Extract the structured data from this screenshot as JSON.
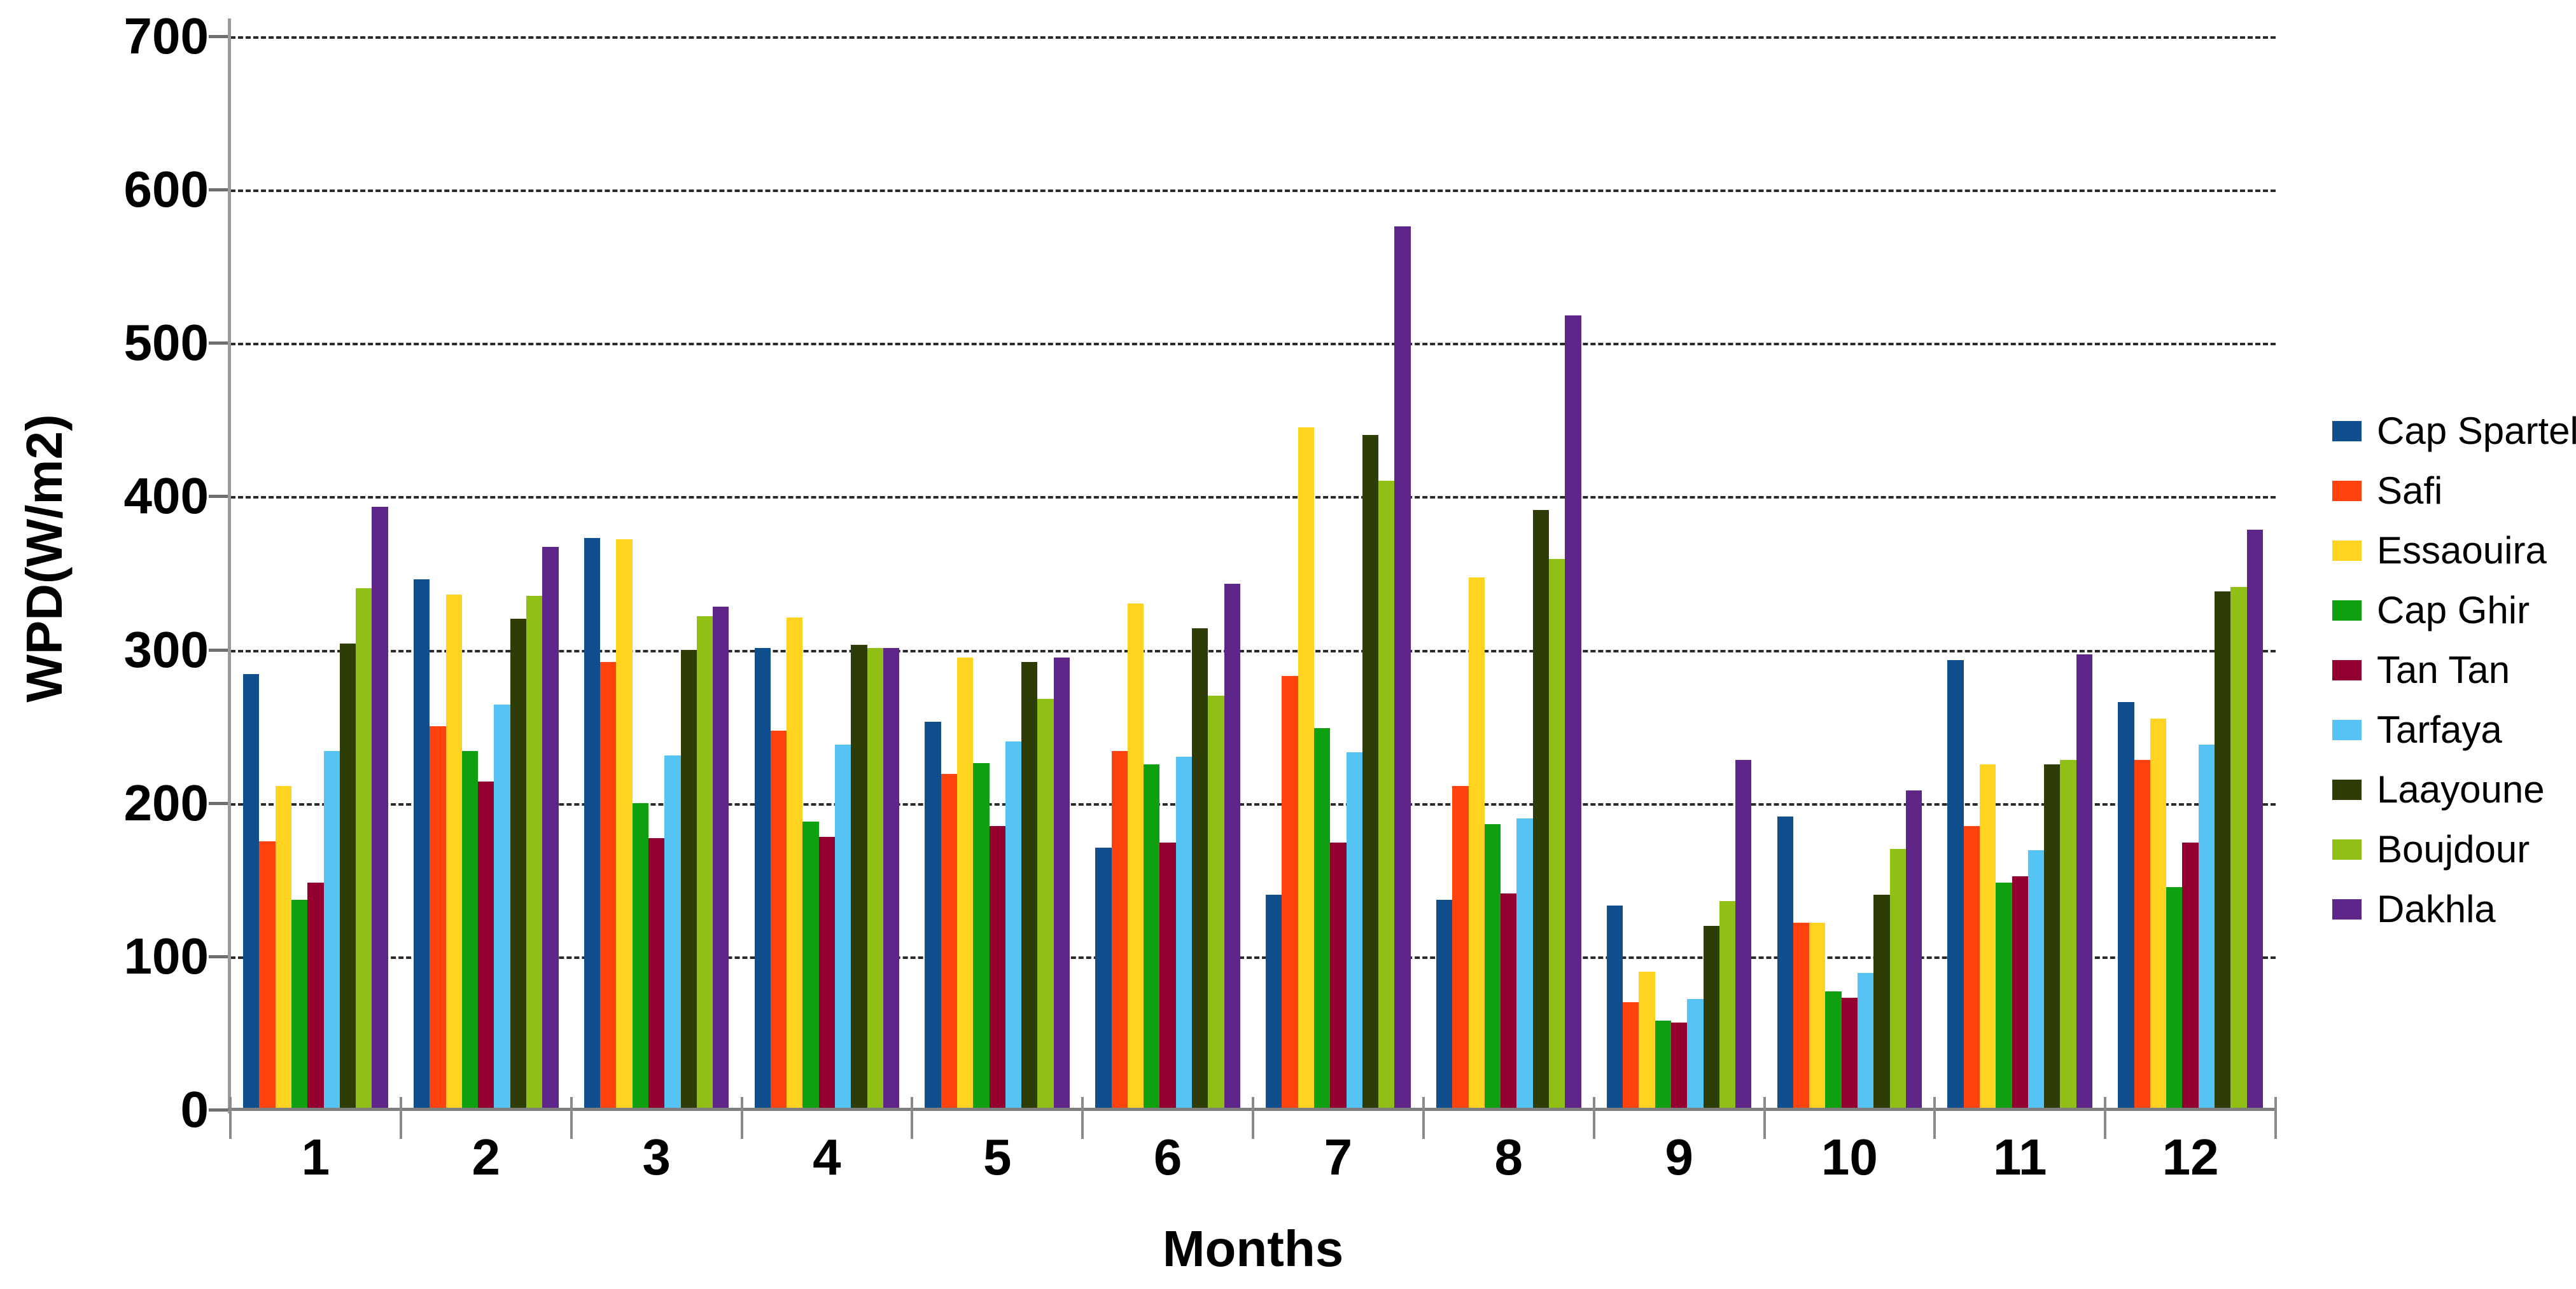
{
  "chart_data": {
    "type": "bar",
    "title": "",
    "xlabel": "Months",
    "ylabel": "WPD(W/m2)",
    "ylim": [
      0,
      700
    ],
    "ytick_step": 100,
    "grid": "horizontal-dashed",
    "legend_position": "right",
    "categories": [
      "1",
      "2",
      "3",
      "4",
      "5",
      "6",
      "7",
      "8",
      "9",
      "10",
      "11",
      "12"
    ],
    "series": [
      {
        "name": "Cap Spartel",
        "color": "#114E8E",
        "values": [
          284,
          346,
          373,
          301,
          253,
          171,
          140,
          137,
          133,
          191,
          293,
          266
        ]
      },
      {
        "name": "Safi",
        "color": "#FF420E",
        "values": [
          175,
          250,
          292,
          247,
          219,
          234,
          283,
          211,
          70,
          122,
          185,
          228
        ]
      },
      {
        "name": "Essaouira",
        "color": "#FFD320",
        "values": [
          211,
          336,
          372,
          321,
          295,
          330,
          445,
          347,
          90,
          122,
          225,
          255
        ]
      },
      {
        "name": "Cap Ghir",
        "color": "#0EA00E",
        "values": [
          137,
          234,
          200,
          188,
          226,
          225,
          249,
          186,
          58,
          77,
          148,
          145
        ]
      },
      {
        "name": "Tan Tan",
        "color": "#93002F",
        "values": [
          148,
          214,
          177,
          178,
          185,
          174,
          174,
          141,
          57,
          73,
          152,
          174
        ]
      },
      {
        "name": "Tarfaya",
        "color": "#55C4F5",
        "values": [
          234,
          264,
          231,
          238,
          240,
          230,
          233,
          190,
          72,
          89,
          169,
          238
        ]
      },
      {
        "name": "Laayoune",
        "color": "#2E3D05",
        "values": [
          304,
          320,
          300,
          303,
          292,
          314,
          440,
          391,
          120,
          140,
          225,
          338
        ]
      },
      {
        "name": "Boujdour",
        "color": "#90C016",
        "values": [
          340,
          335,
          322,
          301,
          268,
          270,
          410,
          359,
          136,
          170,
          228,
          341
        ]
      },
      {
        "name": "Dakhla",
        "color": "#5D2688",
        "values": [
          393,
          367,
          328,
          301,
          295,
          343,
          576,
          518,
          228,
          208,
          297,
          378
        ]
      }
    ]
  },
  "axes": {
    "y_ticks": [
      "0",
      "100",
      "200",
      "300",
      "400",
      "500",
      "600",
      "700"
    ],
    "x_label": "Months",
    "y_label": "WPD(W/m2)"
  }
}
